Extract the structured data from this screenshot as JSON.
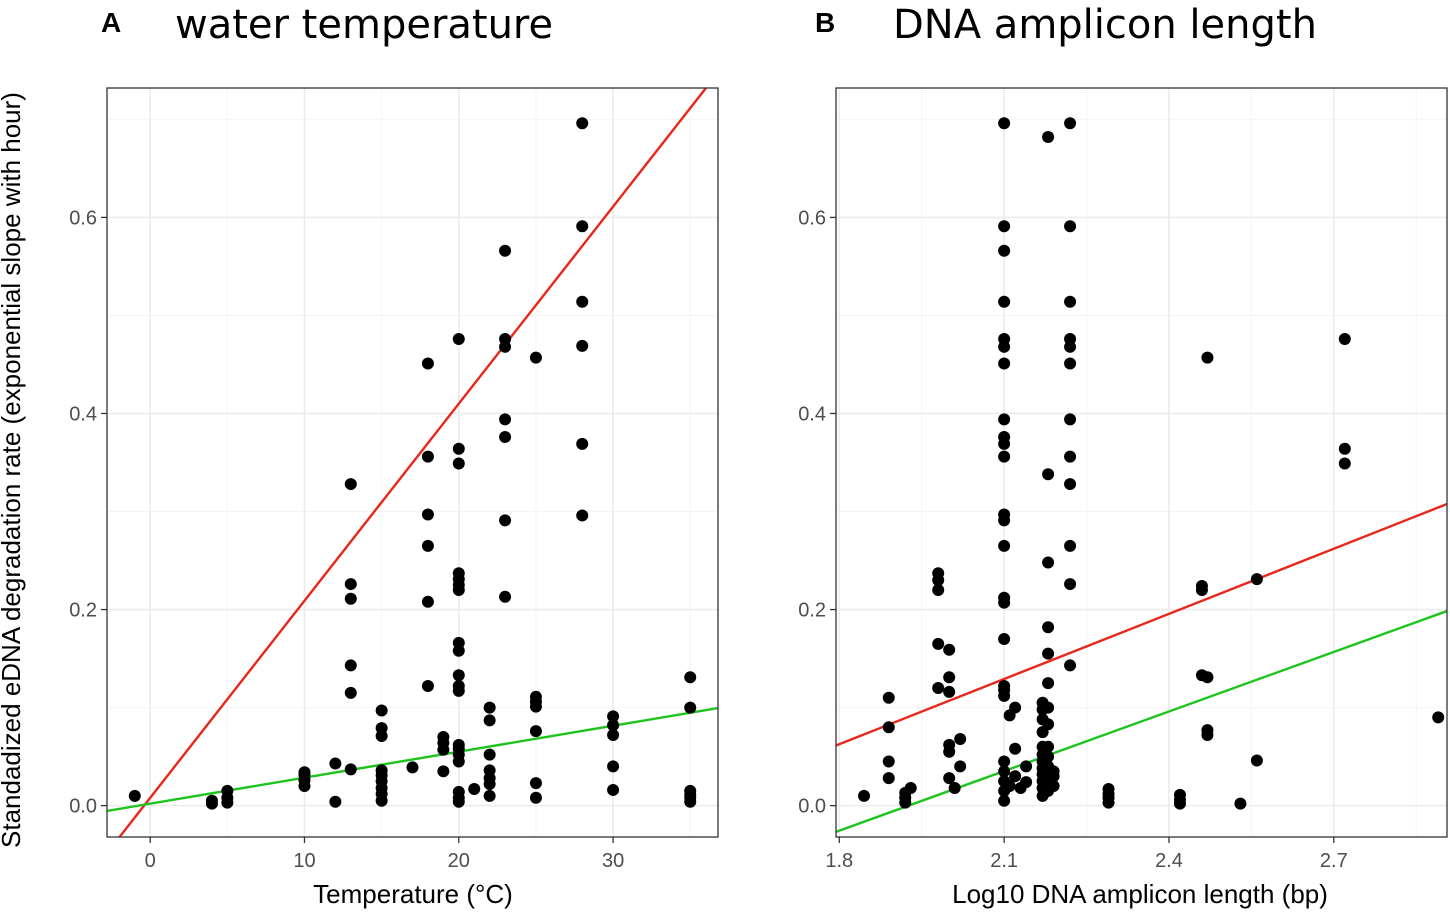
{
  "colors": {
    "red_line": "#e8261a",
    "green_line": "#1ec41e",
    "points": "#000000"
  },
  "y_axis_title": "Standadized eDNA degradation rate (exponential slope with hour)",
  "chart_data": [
    {
      "type": "scatter",
      "panel_letter": "A",
      "title": "water temperature",
      "xlabel": "Temperature (°C)",
      "ylabel": "Standadized eDNA degradation rate (exponential slope with hour)",
      "xlim": [
        -2.8,
        36.8
      ],
      "ylim": [
        -0.032,
        0.732
      ],
      "x_ticks": [
        0,
        10,
        20,
        30
      ],
      "x_tick_labels": [
        "0",
        "10",
        "20",
        "30"
      ],
      "y_ticks": [
        0.0,
        0.2,
        0.4,
        0.6
      ],
      "y_tick_labels": [
        "0.0",
        "0.2",
        "0.4",
        "0.6"
      ],
      "grid": true,
      "legend": "none",
      "lines": [
        {
          "name": "red",
          "color": "#e8261a",
          "intercept": 0.008,
          "slope": 0.0201
        },
        {
          "name": "green",
          "color": "#1ec41e",
          "intercept": 0.002,
          "slope": 0.00265
        }
      ],
      "points": [
        [
          -1,
          0.01
        ],
        [
          4,
          0.002
        ],
        [
          4,
          0.005
        ],
        [
          5,
          0.003
        ],
        [
          5,
          0.008
        ],
        [
          5,
          0.015
        ],
        [
          10,
          0.02
        ],
        [
          10,
          0.026
        ],
        [
          10,
          0.031
        ],
        [
          10,
          0.034
        ],
        [
          12,
          0.004
        ],
        [
          12,
          0.043
        ],
        [
          13,
          0.037
        ],
        [
          13,
          0.115
        ],
        [
          13,
          0.143
        ],
        [
          13,
          0.211
        ],
        [
          13,
          0.226
        ],
        [
          13,
          0.328
        ],
        [
          15,
          0.005
        ],
        [
          15,
          0.012
        ],
        [
          15,
          0.018
        ],
        [
          15,
          0.025
        ],
        [
          15,
          0.031
        ],
        [
          15,
          0.036
        ],
        [
          15,
          0.071
        ],
        [
          15,
          0.079
        ],
        [
          15,
          0.097
        ],
        [
          17,
          0.039
        ],
        [
          18,
          0.122
        ],
        [
          18,
          0.208
        ],
        [
          18,
          0.265
        ],
        [
          18,
          0.297
        ],
        [
          18,
          0.356
        ],
        [
          18,
          0.451
        ],
        [
          19,
          0.035
        ],
        [
          19,
          0.057
        ],
        [
          19,
          0.064
        ],
        [
          19,
          0.07
        ],
        [
          20,
          0.004
        ],
        [
          20,
          0.008
        ],
        [
          20,
          0.014
        ],
        [
          20,
          0.045
        ],
        [
          20,
          0.052
        ],
        [
          20,
          0.058
        ],
        [
          20,
          0.062
        ],
        [
          20,
          0.117
        ],
        [
          20,
          0.122
        ],
        [
          20,
          0.133
        ],
        [
          20,
          0.158
        ],
        [
          20,
          0.166
        ],
        [
          20,
          0.22
        ],
        [
          20,
          0.225
        ],
        [
          20,
          0.231
        ],
        [
          20,
          0.237
        ],
        [
          20,
          0.349
        ],
        [
          20,
          0.364
        ],
        [
          20,
          0.476
        ],
        [
          21,
          0.017
        ],
        [
          22,
          0.01
        ],
        [
          22,
          0.022
        ],
        [
          22,
          0.028
        ],
        [
          22,
          0.036
        ],
        [
          22,
          0.052
        ],
        [
          22,
          0.087
        ],
        [
          22,
          0.1
        ],
        [
          23,
          0.213
        ],
        [
          23,
          0.291
        ],
        [
          23,
          0.376
        ],
        [
          23,
          0.394
        ],
        [
          23,
          0.468
        ],
        [
          23,
          0.476
        ],
        [
          23,
          0.566
        ],
        [
          25,
          0.008
        ],
        [
          25,
          0.023
        ],
        [
          25,
          0.076
        ],
        [
          25,
          0.101
        ],
        [
          25,
          0.106
        ],
        [
          25,
          0.111
        ],
        [
          25,
          0.457
        ],
        [
          28,
          0.296
        ],
        [
          28,
          0.369
        ],
        [
          28,
          0.469
        ],
        [
          28,
          0.514
        ],
        [
          28,
          0.591
        ],
        [
          28,
          0.696
        ],
        [
          30,
          0.016
        ],
        [
          30,
          0.04
        ],
        [
          30,
          0.072
        ],
        [
          30,
          0.082
        ],
        [
          30,
          0.091
        ],
        [
          35,
          0.004
        ],
        [
          35,
          0.008
        ],
        [
          35,
          0.011
        ],
        [
          35,
          0.015
        ],
        [
          35,
          0.1
        ],
        [
          35,
          0.131
        ]
      ]
    },
    {
      "type": "scatter",
      "panel_letter": "B",
      "title": "DNA amplicon length",
      "xlabel": "Log10 DNA amplicon length (bp)",
      "ylabel": "",
      "xlim": [
        1.794,
        2.906
      ],
      "ylim": [
        -0.032,
        0.732
      ],
      "x_ticks": [
        1.8,
        2.1,
        2.4,
        2.7
      ],
      "x_tick_labels": [
        "1.8",
        "2.1",
        "2.4",
        "2.7"
      ],
      "y_ticks": [
        0.0,
        0.2,
        0.4,
        0.6
      ],
      "y_tick_labels": [
        "0.0",
        "0.2",
        "0.4",
        "0.6"
      ],
      "grid": true,
      "legend": "none",
      "lines": [
        {
          "name": "red",
          "color": "#e8261a",
          "intercept": -0.336,
          "slope": 0.2215
        },
        {
          "name": "green",
          "color": "#1ec41e",
          "intercept": -0.39,
          "slope": 0.2025
        }
      ],
      "points": [
        [
          1.845,
          0.01
        ],
        [
          1.89,
          0.028
        ],
        [
          1.89,
          0.045
        ],
        [
          1.89,
          0.08
        ],
        [
          1.89,
          0.11
        ],
        [
          1.92,
          0.003
        ],
        [
          1.92,
          0.008
        ],
        [
          1.92,
          0.013
        ],
        [
          1.93,
          0.018
        ],
        [
          1.98,
          0.12
        ],
        [
          1.98,
          0.165
        ],
        [
          1.98,
          0.22
        ],
        [
          1.98,
          0.23
        ],
        [
          1.98,
          0.237
        ],
        [
          2.0,
          0.028
        ],
        [
          2.0,
          0.055
        ],
        [
          2.0,
          0.062
        ],
        [
          2.0,
          0.116
        ],
        [
          2.0,
          0.131
        ],
        [
          2.0,
          0.159
        ],
        [
          2.01,
          0.018
        ],
        [
          2.02,
          0.04
        ],
        [
          2.02,
          0.068
        ],
        [
          2.1,
          0.005
        ],
        [
          2.1,
          0.015
        ],
        [
          2.1,
          0.025
        ],
        [
          2.1,
          0.035
        ],
        [
          2.1,
          0.045
        ],
        [
          2.1,
          0.112
        ],
        [
          2.1,
          0.118
        ],
        [
          2.1,
          0.122
        ],
        [
          2.1,
          0.17
        ],
        [
          2.1,
          0.207
        ],
        [
          2.1,
          0.212
        ],
        [
          2.1,
          0.265
        ],
        [
          2.1,
          0.291
        ],
        [
          2.1,
          0.297
        ],
        [
          2.1,
          0.356
        ],
        [
          2.1,
          0.369
        ],
        [
          2.1,
          0.376
        ],
        [
          2.1,
          0.394
        ],
        [
          2.1,
          0.451
        ],
        [
          2.1,
          0.468
        ],
        [
          2.1,
          0.476
        ],
        [
          2.1,
          0.514
        ],
        [
          2.1,
          0.566
        ],
        [
          2.1,
          0.591
        ],
        [
          2.1,
          0.696
        ],
        [
          2.11,
          0.02
        ],
        [
          2.11,
          0.092
        ],
        [
          2.12,
          0.03
        ],
        [
          2.12,
          0.058
        ],
        [
          2.12,
          0.1
        ],
        [
          2.13,
          0.018
        ],
        [
          2.14,
          0.024
        ],
        [
          2.14,
          0.04
        ],
        [
          2.17,
          0.01
        ],
        [
          2.17,
          0.018
        ],
        [
          2.17,
          0.025
        ],
        [
          2.17,
          0.032
        ],
        [
          2.17,
          0.038
        ],
        [
          2.17,
          0.045
        ],
        [
          2.17,
          0.052
        ],
        [
          2.17,
          0.06
        ],
        [
          2.17,
          0.075
        ],
        [
          2.17,
          0.088
        ],
        [
          2.17,
          0.098
        ],
        [
          2.17,
          0.105
        ],
        [
          2.18,
          0.015
        ],
        [
          2.18,
          0.022
        ],
        [
          2.18,
          0.028
        ],
        [
          2.18,
          0.035
        ],
        [
          2.18,
          0.04
        ],
        [
          2.18,
          0.05
        ],
        [
          2.18,
          0.06
        ],
        [
          2.18,
          0.083
        ],
        [
          2.18,
          0.1
        ],
        [
          2.18,
          0.125
        ],
        [
          2.18,
          0.155
        ],
        [
          2.18,
          0.182
        ],
        [
          2.18,
          0.248
        ],
        [
          2.18,
          0.338
        ],
        [
          2.18,
          0.682
        ],
        [
          2.19,
          0.02
        ],
        [
          2.19,
          0.03
        ],
        [
          2.19,
          0.035
        ],
        [
          2.22,
          0.143
        ],
        [
          2.22,
          0.226
        ],
        [
          2.22,
          0.265
        ],
        [
          2.22,
          0.328
        ],
        [
          2.22,
          0.356
        ],
        [
          2.22,
          0.394
        ],
        [
          2.22,
          0.451
        ],
        [
          2.22,
          0.468
        ],
        [
          2.22,
          0.476
        ],
        [
          2.22,
          0.514
        ],
        [
          2.22,
          0.591
        ],
        [
          2.22,
          0.696
        ],
        [
          2.29,
          0.003
        ],
        [
          2.29,
          0.008
        ],
        [
          2.29,
          0.012
        ],
        [
          2.29,
          0.017
        ],
        [
          2.42,
          0.002
        ],
        [
          2.42,
          0.006
        ],
        [
          2.42,
          0.011
        ],
        [
          2.46,
          0.133
        ],
        [
          2.46,
          0.22
        ],
        [
          2.46,
          0.224
        ],
        [
          2.47,
          0.072
        ],
        [
          2.47,
          0.077
        ],
        [
          2.47,
          0.131
        ],
        [
          2.47,
          0.457
        ],
        [
          2.53,
          0.002
        ],
        [
          2.56,
          0.046
        ],
        [
          2.56,
          0.231
        ],
        [
          2.72,
          0.349
        ],
        [
          2.72,
          0.364
        ],
        [
          2.72,
          0.476
        ],
        [
          2.89,
          0.09
        ]
      ]
    }
  ]
}
